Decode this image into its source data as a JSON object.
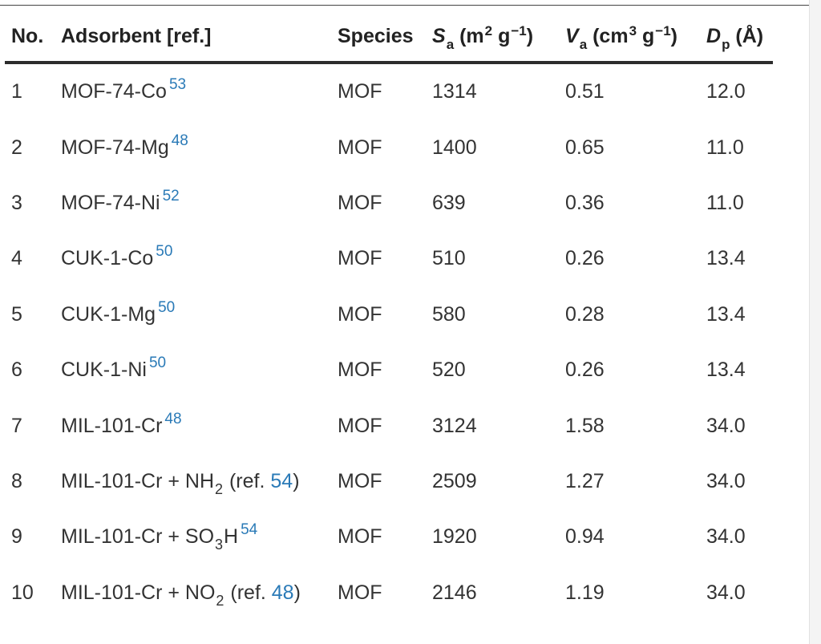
{
  "table": {
    "headers": {
      "no": "No.",
      "adsorbent": "Adsorbent [ref.]",
      "species": "Species",
      "sa_sym": "S",
      "sa_sub": "a",
      "sa_unit_pre": "(m",
      "sa_unit_sup": "2",
      "sa_unit_mid": " g",
      "sa_unit_sup2": "−1",
      "sa_unit_post": ")",
      "va_sym": "V",
      "va_sub": "a",
      "va_unit_pre": "(cm",
      "va_unit_sup": "3",
      "va_unit_mid": " g",
      "va_unit_sup2": "−1",
      "va_unit_post": ")",
      "dp_sym": "D",
      "dp_sub": "p",
      "dp_unit": "(Å)"
    },
    "rows": [
      {
        "no": "1",
        "adsorbent": "MOF-74-Co",
        "ref": "53",
        "species": "MOF",
        "sa": "1314",
        "va": "0.51",
        "dp": "12.0"
      },
      {
        "no": "2",
        "adsorbent": "MOF-74-Mg",
        "ref": "48",
        "species": "MOF",
        "sa": "1400",
        "va": "0.65",
        "dp": "11.0"
      },
      {
        "no": "3",
        "adsorbent": "MOF-74-Ni",
        "ref": "52",
        "species": "MOF",
        "sa": "639",
        "va": "0.36",
        "dp": "11.0"
      },
      {
        "no": "4",
        "adsorbent": "CUK-1-Co",
        "ref": "50",
        "species": "MOF",
        "sa": "510",
        "va": "0.26",
        "dp": "13.4"
      },
      {
        "no": "5",
        "adsorbent": "CUK-1-Mg",
        "ref": "50",
        "species": "MOF",
        "sa": "580",
        "va": "0.28",
        "dp": "13.4"
      },
      {
        "no": "6",
        "adsorbent": "CUK-1-Ni",
        "ref": "50",
        "species": "MOF",
        "sa": "520",
        "va": "0.26",
        "dp": "13.4"
      },
      {
        "no": "7",
        "adsorbent": "MIL-101-Cr",
        "ref": "48",
        "species": "MOF",
        "sa": "3124",
        "va": "1.58",
        "dp": "34.0"
      },
      {
        "no": "8",
        "adsorbent_pre": "MIL-101-Cr + NH",
        "adsorbent_sub": "2",
        "adsorbent_post": " (ref. ",
        "ref": "54",
        "adsorbent_close": ")",
        "species": "MOF",
        "sa": "2509",
        "va": "1.27",
        "dp": "34.0"
      },
      {
        "no": "9",
        "adsorbent_pre": "MIL-101-Cr + SO",
        "adsorbent_sub": "3",
        "adsorbent_post": "H",
        "ref": "54",
        "species": "MOF",
        "sa": "1920",
        "va": "0.94",
        "dp": "34.0"
      },
      {
        "no": "10",
        "adsorbent_pre": "MIL-101-Cr + NO",
        "adsorbent_sub": "2",
        "adsorbent_post": " (ref. ",
        "ref": "48",
        "adsorbent_close": ")",
        "species": "MOF",
        "sa": "2146",
        "va": "1.19",
        "dp": "34.0"
      }
    ]
  }
}
